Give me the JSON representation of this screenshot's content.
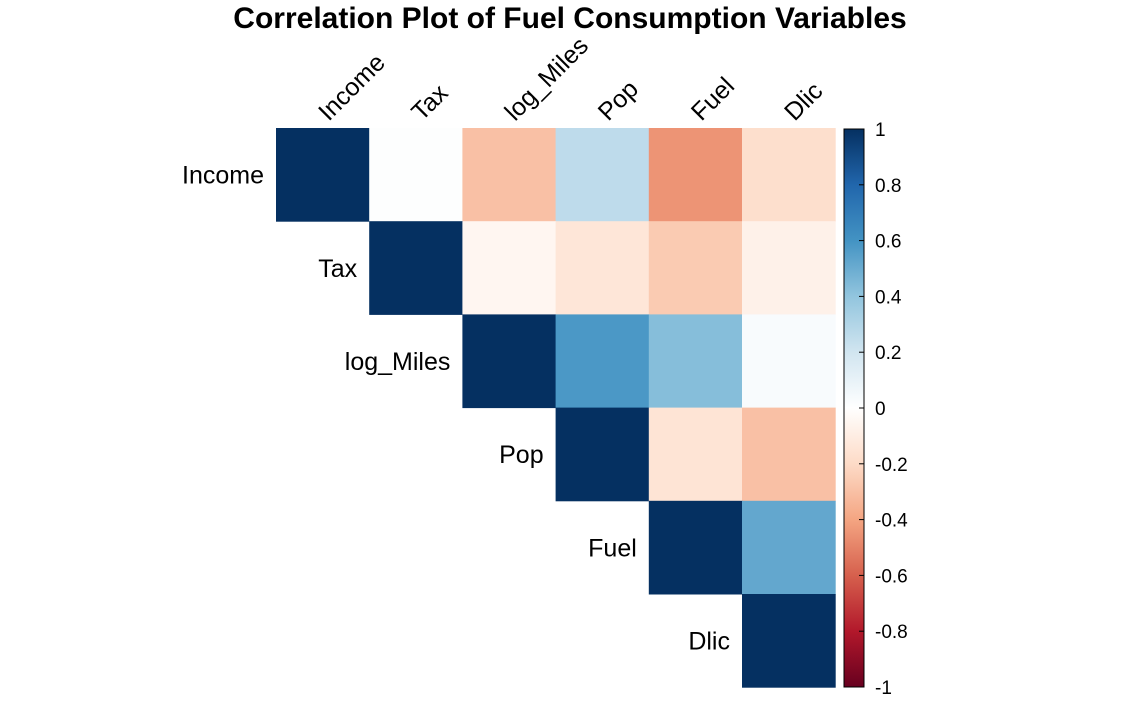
{
  "chart_data": {
    "type": "heatmap",
    "title": "Correlation Plot of Fuel Consumption Variables",
    "layout": "upper",
    "variables": [
      "Income",
      "Tax",
      "log_Miles",
      "Pop",
      "Fuel",
      "Dlic"
    ],
    "matrix": [
      [
        1.0,
        0.01,
        -0.3,
        0.26,
        -0.45,
        -0.18
      ],
      [
        0.01,
        1.0,
        -0.05,
        -0.14,
        -0.26,
        -0.08
      ],
      [
        -0.3,
        -0.05,
        1.0,
        0.58,
        0.43,
        0.03
      ],
      [
        0.26,
        -0.14,
        0.58,
        1.0,
        -0.15,
        -0.3
      ],
      [
        -0.45,
        -0.26,
        0.43,
        -0.15,
        1.0,
        0.52
      ],
      [
        -0.18,
        -0.08,
        0.03,
        -0.3,
        0.52,
        1.0
      ]
    ],
    "colorbar": {
      "range": [
        -1,
        1
      ],
      "ticks": [
        "1",
        "0.8",
        "0.6",
        "0.4",
        "0.2",
        "0",
        "-0.2",
        "-0.4",
        "-0.6",
        "-0.8",
        "-1"
      ],
      "colors": [
        "#67001F",
        "#B2182B",
        "#D6604D",
        "#F4A582",
        "#FDDBC7",
        "#FFFFFF",
        "#D1E5F0",
        "#92C5DE",
        "#4393C3",
        "#2166AC",
        "#053061"
      ]
    }
  }
}
